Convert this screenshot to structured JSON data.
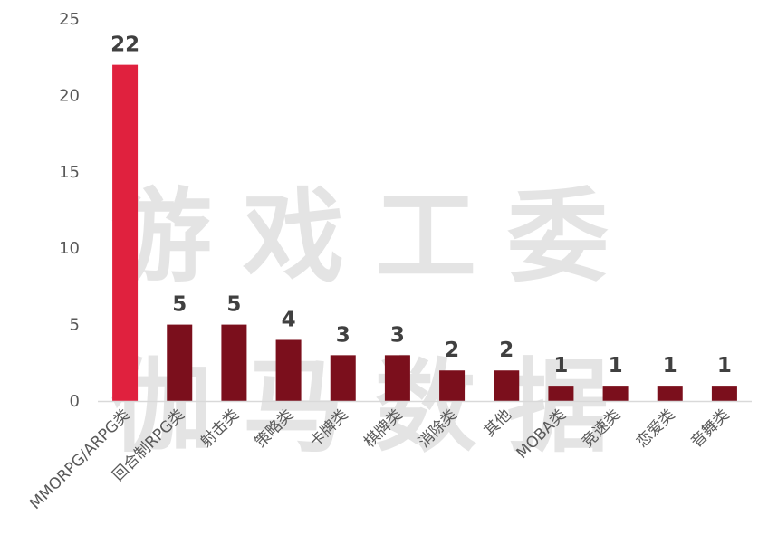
{
  "chart_data": {
    "type": "bar",
    "title": "",
    "xlabel": "",
    "ylabel": "",
    "categories": [
      "MMORPG/ARPG类",
      "回合制RPG类",
      "射击类",
      "策略类",
      "卡牌类",
      "棋牌类",
      "消除类",
      "其他",
      "MOBA类",
      "竞速类",
      "恋爱类",
      "音舞类"
    ],
    "values": [
      22,
      5,
      5,
      4,
      3,
      3,
      2,
      2,
      1,
      1,
      1,
      1
    ],
    "ylim": [
      0,
      25
    ],
    "yticks": [
      0,
      5,
      10,
      15,
      20,
      25
    ],
    "grid": false,
    "legend": "none",
    "data_labels": true,
    "colors": {
      "highlight": "#e0213e",
      "default": "#7b0f1c",
      "axis": "#d9d9d9"
    },
    "highlight_index": 0
  },
  "watermark": {
    "line1": "游戏工委",
    "line2": "伽马数据"
  }
}
